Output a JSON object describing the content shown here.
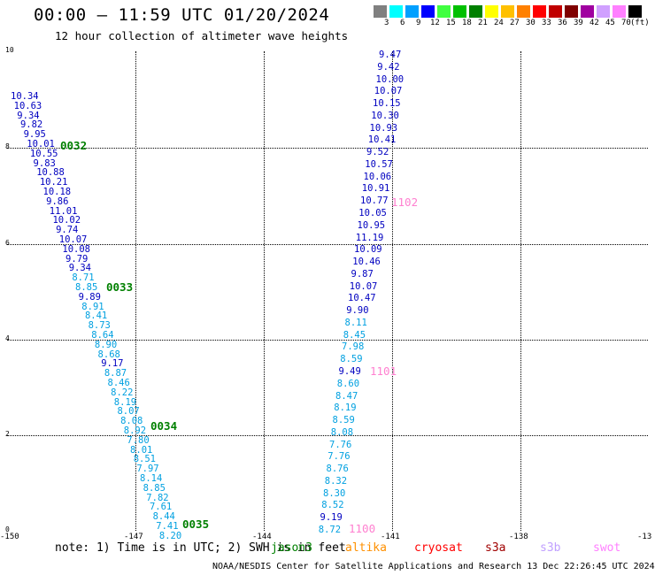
{
  "title": "00:00 – 11:59 UTC 01/20/2024",
  "subtitle": "12 hour collection of altimeter wave heights",
  "colorbar": {
    "colors": [
      "#808080",
      "#00ffff",
      "#00a0ff",
      "#0000ff",
      "#40ff40",
      "#00c000",
      "#008000",
      "#ffff00",
      "#ffc000",
      "#ff8000",
      "#ff0000",
      "#c00000",
      "#800000",
      "#a000a0",
      "#d0a0ff",
      "#ff80ff",
      "#000000"
    ],
    "labels": [
      "3",
      "6",
      "9",
      "12",
      "15",
      "18",
      "21",
      "24",
      "27",
      "30",
      "33",
      "36",
      "39",
      "42",
      "45",
      "70"
    ],
    "unit": "(ft)"
  },
  "y_ticks": [
    "10",
    "8",
    "6",
    "4",
    "2",
    "0"
  ],
  "x_ticks": [
    "-150",
    "-147",
    "-144",
    "-141",
    "-138",
    "-13"
  ],
  "passes": [
    {
      "id": "0032",
      "color": "#008000"
    },
    {
      "id": "0033",
      "color": "#008000"
    },
    {
      "id": "0034",
      "color": "#008000"
    },
    {
      "id": "0035",
      "color": "#008000"
    },
    {
      "id": "1102",
      "color": "#ff80d0"
    },
    {
      "id": "1101",
      "color": "#ff80d0"
    },
    {
      "id": "1100",
      "color": "#ff80d0"
    }
  ],
  "track_west": [
    "10.34",
    "10.63",
    "9.34",
    "9.82",
    "9.95",
    "10.01",
    "10.55",
    "9.83",
    "10.88",
    "10.21",
    "10.18",
    "9.86",
    "11.01",
    "10.02",
    "9.74",
    "10.07",
    "10.08",
    "9.79",
    "9.34",
    "8.71",
    "8.85",
    "9.89",
    "8.91",
    "8.41",
    "8.73",
    "8.64",
    "8.90",
    "8.68",
    "9.17",
    "8.87",
    "8.46",
    "8.22",
    "8.19",
    "8.07",
    "8.08",
    "8.92",
    "7.80",
    "8.01",
    "8.51",
    "7.97",
    "8.14",
    "8.85",
    "7.82",
    "7.61",
    "8.44",
    "7.41",
    "8.20"
  ],
  "track_east": [
    "9.47",
    "9.42",
    "10.00",
    "10.07",
    "10.15",
    "10.30",
    "10.93",
    "10.41",
    "9.52",
    "10.57",
    "10.06",
    "10.91",
    "10.77",
    "10.05",
    "10.95",
    "11.19",
    "10.09",
    "10.46",
    "9.87",
    "10.07",
    "10.47",
    "9.90",
    "8.11",
    "8.45",
    "7.98",
    "8.59",
    "9.49",
    "8.60",
    "8.47",
    "8.19",
    "8.59",
    "8.08",
    "7.76",
    "7.76",
    "8.76",
    "8.32",
    "8.30",
    "8.52",
    "9.19",
    "8.72"
  ],
  "note": "note: 1) Time is in UTC; 2) SWH is in feet",
  "satellites": [
    {
      "name": "jason3",
      "color": "#008000"
    },
    {
      "name": "altika",
      "color": "#ff9000"
    },
    {
      "name": "cryosat",
      "color": "#ff0000"
    },
    {
      "name": "s3a",
      "color": "#a00000"
    },
    {
      "name": "s3b",
      "color": "#c0a0ff"
    },
    {
      "name": "swot",
      "color": "#ff80ff"
    }
  ],
  "footer": "NOAA/NESDIS Center for Satellite Applications and Research   13 Dec 22:26:45 UTC 2024"
}
